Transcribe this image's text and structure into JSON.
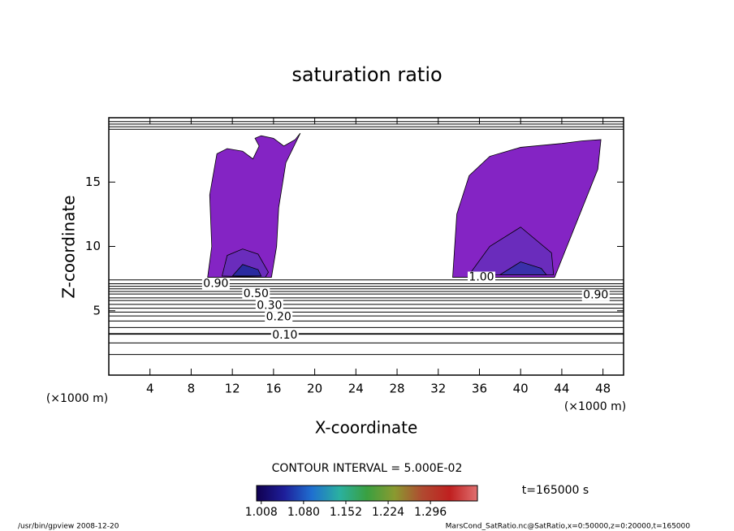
{
  "chart_data": {
    "type": "contour",
    "title": "saturation ratio",
    "xlabel": "X-coordinate",
    "ylabel": "Z-coordinate",
    "x_unit": "(×1000 m)",
    "y_unit": "(×1000 m)",
    "xlim": [
      0,
      50
    ],
    "ylim": [
      0,
      20
    ],
    "xticks": [
      4,
      8,
      12,
      16,
      20,
      24,
      28,
      32,
      36,
      40,
      44,
      48
    ],
    "yticks": [
      5,
      10,
      15
    ],
    "regions": [
      {
        "color": "#8424c4",
        "x": [
          9.6,
          10,
          9.8,
          10.5,
          11.5,
          13,
          14,
          14.6,
          14.2,
          14.8,
          16,
          17,
          18.1,
          18.6,
          17.2,
          16.5,
          16.3,
          15.8
        ],
        "z": [
          7.6,
          10,
          14,
          17.2,
          17.6,
          17.4,
          16.8,
          17.8,
          18.4,
          18.6,
          18.4,
          17.8,
          18.3,
          18.8,
          16.5,
          13,
          10,
          7.6
        ]
      },
      {
        "color": "#8424c4",
        "x": [
          33.4,
          33.8,
          35,
          37,
          40,
          44,
          46,
          47.8,
          47.5,
          45.5,
          44,
          43.3
        ],
        "z": [
          7.6,
          12.5,
          15.5,
          17,
          17.7,
          18,
          18.2,
          18.3,
          16,
          12,
          9,
          7.6
        ]
      },
      {
        "color": "#6a2cbc",
        "x": [
          11,
          11.5,
          13,
          14.5,
          15.5,
          15.2
        ],
        "z": [
          7.7,
          9.3,
          9.8,
          9.4,
          8,
          7.6
        ]
      },
      {
        "color": "#6a2cbc",
        "x": [
          35,
          37,
          40,
          43,
          43.2
        ],
        "z": [
          7.8,
          10,
          11.5,
          9.5,
          7.8
        ]
      },
      {
        "color": "#2a2aa0",
        "x": [
          12,
          13,
          14.5,
          14.8
        ],
        "z": [
          7.7,
          8.6,
          8.2,
          7.7
        ]
      },
      {
        "color": "#3a30aa",
        "x": [
          38,
          40,
          42,
          42.5
        ],
        "z": [
          7.8,
          8.8,
          8.3,
          7.8
        ]
      }
    ],
    "contour_lines": [
      1.6,
      2.5,
      3.2,
      3.7,
      4.2,
      4.6,
      4.9,
      5.2,
      5.5,
      5.8,
      6.0,
      6.3,
      6.5,
      6.7,
      6.9,
      7.1,
      7.4,
      19.1,
      19.3,
      19.5,
      19.7
    ],
    "contour_labels": [
      {
        "text": "0.10",
        "x": 17.1,
        "z": 3.1
      },
      {
        "text": "0.20",
        "x": 16.5,
        "z": 4.5
      },
      {
        "text": "0.30",
        "x": 15.6,
        "z": 5.4
      },
      {
        "text": "0.50",
        "x": 14.3,
        "z": 6.3
      },
      {
        "text": "0.90",
        "x": 10.4,
        "z": 7.1
      },
      {
        "text": "1.00",
        "x": 36.2,
        "z": 7.6
      },
      {
        "text": "0.90",
        "x": 47.3,
        "z": 6.2
      }
    ],
    "contour_interval": "CONTOUR INTERVAL = 5.000E-02",
    "time_label": "t=165000 s",
    "colormap": [
      "#100050",
      "#1e1e9a",
      "#1f6fd0",
      "#2ab0a0",
      "#3aa040",
      "#8a9a30",
      "#b04a30",
      "#c02020",
      "#e07070"
    ],
    "clim": [
      1.0,
      1.376
    ],
    "cticks": [
      1.008,
      {
        "value": 1.08,
        "label": "1.080"
      },
      1.152,
      1.224,
      1.296
    ],
    "footer_left": "/usr/bin/gpview  2008-12-20",
    "footer_right": "MarsCond_SatRatio.nc@SatRatio,x=0:50000,z=0:20000,t=165000"
  }
}
